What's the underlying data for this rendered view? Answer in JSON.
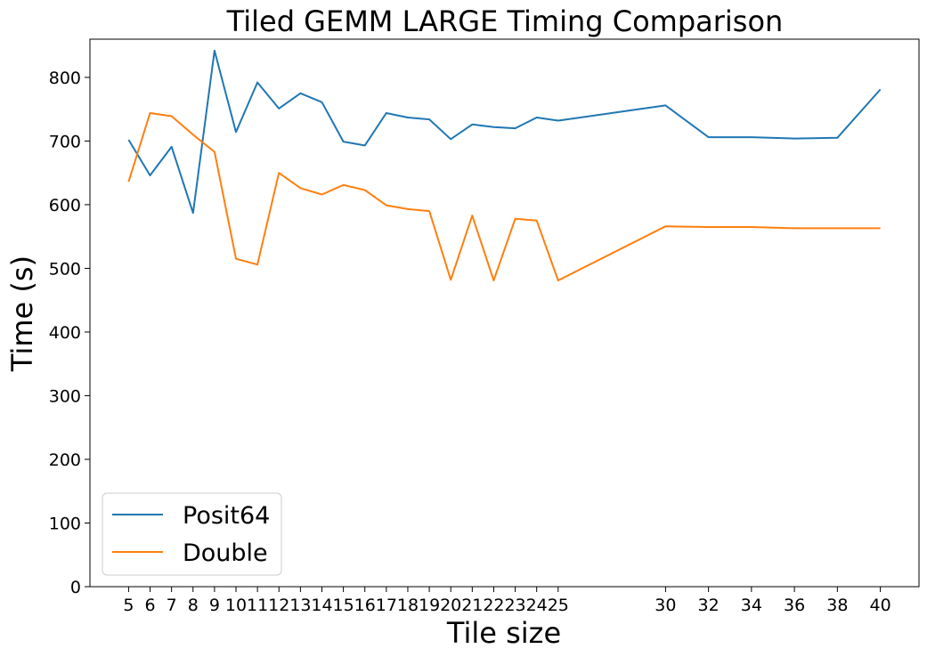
{
  "chart_data": {
    "type": "line",
    "title": "Tiled GEMM LARGE Timing Comparison",
    "xlabel": "Tile size",
    "ylabel": "Time (s)",
    "x": [
      5,
      6,
      7,
      8,
      9,
      10,
      11,
      12,
      13,
      14,
      15,
      16,
      17,
      18,
      19,
      20,
      21,
      22,
      23,
      24,
      25,
      30,
      32,
      34,
      36,
      38,
      40
    ],
    "xticks": [
      "5",
      "6",
      "7",
      "8",
      "9",
      "10",
      "11",
      "12",
      "13",
      "14",
      "15",
      "16",
      "17",
      "18",
      "19",
      "20",
      "21",
      "22",
      "23",
      "24",
      "25",
      "30",
      "32",
      "34",
      "36",
      "38",
      "40"
    ],
    "xlim": [
      3.2,
      41.8
    ],
    "ylim": [
      0,
      860
    ],
    "yticks": [
      0,
      100,
      200,
      300,
      400,
      500,
      600,
      700,
      800
    ],
    "grid": false,
    "legend_position": "lower-left",
    "series": [
      {
        "name": "Posit64",
        "color": "#1f77b4",
        "values": [
          702,
          646,
          691,
          587,
          842,
          714,
          792,
          751,
          775,
          761,
          699,
          693,
          744,
          737,
          734,
          703,
          726,
          722,
          720,
          737,
          732,
          756,
          706,
          706,
          704,
          705,
          781
        ]
      },
      {
        "name": "Double",
        "color": "#ff7f0e",
        "values": [
          636,
          744,
          739,
          710,
          683,
          515,
          506,
          650,
          626,
          616,
          631,
          623,
          599,
          593,
          590,
          482,
          583,
          481,
          578,
          575,
          481,
          566,
          565,
          565,
          563,
          563,
          563
        ]
      }
    ]
  }
}
